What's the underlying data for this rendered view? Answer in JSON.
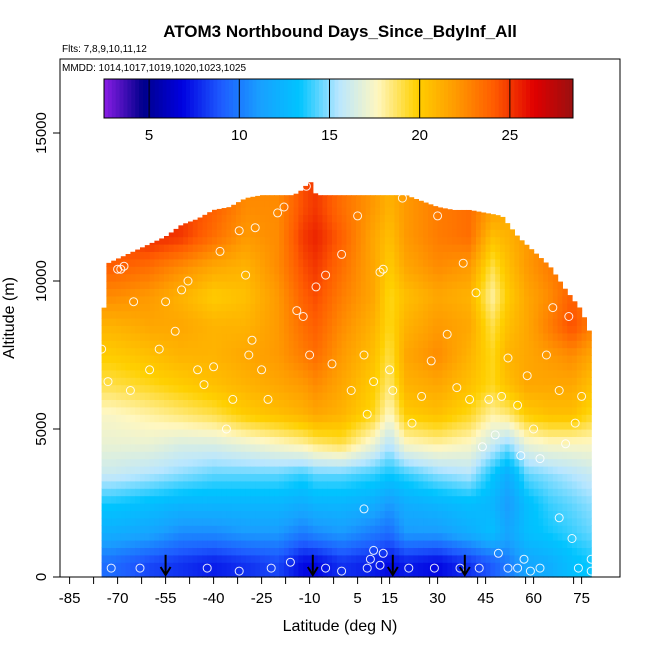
{
  "chart_data": {
    "type": "heatmap",
    "title": "ATOM3 Northbound Days_Since_BdyInf_All",
    "flights_text": "Flts: 7,8,9,10,11,12",
    "mmdd_text": "MMDD: 1014,1017,1019,1020,1023,1025",
    "xlabel": "Latitude (deg N)",
    "ylabel": "Altitude (m)",
    "xlim": [
      -88,
      87
    ],
    "ylim": [
      0,
      17500
    ],
    "x_ticks": [
      -85,
      -70,
      -55,
      -40,
      -25,
      -10,
      5,
      15,
      30,
      45,
      60,
      75
    ],
    "x_tick_labels": [
      "-85",
      "-70",
      "-55",
      "-40",
      "-25",
      "-10",
      "5",
      "15",
      "30",
      "45",
      "60",
      "75"
    ],
    "y_ticks": [
      0,
      5000,
      10000,
      15000
    ],
    "y_tick_labels": [
      "0",
      "5000",
      "10000",
      "15000"
    ],
    "colorbar": {
      "min": 2.5,
      "max": 28.5,
      "ticks": [
        5,
        10,
        15,
        20,
        25
      ],
      "tick_labels": [
        "5",
        "10",
        "15",
        "20",
        "25"
      ],
      "colors": [
        "#8a1de6",
        "#00008b",
        "#0000e0",
        "#1e5cff",
        "#19a0ff",
        "#00c4ff",
        "#b8e6ff",
        "#fff7c0",
        "#ffd000",
        "#ff9a00",
        "#ff5a00",
        "#e00000",
        "#9a1010"
      ]
    },
    "profile_extent": {
      "latitudes": [
        -75,
        -73,
        -65,
        -55,
        -50,
        -45,
        -40,
        -35,
        -30,
        -25,
        -20,
        -15,
        -12,
        -10,
        -8,
        -5,
        0,
        5,
        10,
        15,
        20,
        30,
        35,
        40,
        45,
        50,
        55,
        60,
        65,
        70,
        75,
        78
      ],
      "top_altitudes": [
        8200,
        10600,
        11000,
        11500,
        11900,
        12100,
        12400,
        12500,
        12800,
        12900,
        12900,
        12900,
        13100,
        13400,
        12900,
        12900,
        12900,
        12900,
        12900,
        12900,
        12900,
        12500,
        12400,
        12400,
        12300,
        12200,
        11500,
        11000,
        10500,
        9700,
        9000,
        8100
      ]
    },
    "field": {
      "latitudes": [
        -72,
        -60,
        -50,
        -40,
        -30,
        -20,
        -12,
        -8,
        0,
        10,
        15,
        20,
        30,
        40,
        47,
        52,
        58,
        65,
        72,
        78
      ],
      "altitudes": [
        500,
        1500,
        2500,
        3500,
        4500,
        5500,
        6500,
        7500,
        8500,
        9500,
        10500,
        11500,
        12500
      ],
      "values": [
        [
          9.5,
          8.5,
          8.0,
          7.5,
          8.0,
          8.5,
          7.0,
          7.0,
          8.0,
          7.5,
          7.0,
          7.5,
          7.0,
          8.0,
          9.0,
          10.0,
          11.5,
          12.0,
          13.0,
          13.5
        ],
        [
          12.0,
          11.5,
          10.5,
          10.5,
          11.0,
          11.0,
          10.0,
          10.5,
          11.0,
          10.0,
          9.5,
          11.0,
          11.0,
          12.0,
          13.0,
          11.5,
          13.0,
          13.5,
          14.0,
          14.5
        ],
        [
          13.5,
          13.0,
          12.5,
          12.5,
          12.5,
          12.5,
          12.0,
          12.5,
          12.5,
          12.0,
          11.0,
          12.0,
          12.5,
          13.0,
          12.5,
          11.0,
          13.0,
          14.0,
          14.5,
          15.0
        ],
        [
          16.0,
          15.5,
          15.0,
          14.5,
          14.5,
          14.5,
          14.0,
          14.5,
          14.5,
          14.0,
          13.5,
          14.0,
          15.0,
          15.5,
          13.5,
          12.0,
          14.5,
          15.0,
          15.5,
          16.0
        ],
        [
          17.0,
          17.0,
          16.5,
          16.5,
          17.0,
          17.5,
          18.0,
          18.5,
          19.0,
          17.0,
          15.5,
          17.5,
          18.0,
          17.5,
          16.0,
          15.0,
          17.0,
          17.5,
          17.5,
          17.5
        ],
        [
          17.5,
          18.0,
          18.5,
          19.0,
          20.0,
          20.5,
          21.0,
          21.5,
          21.0,
          19.5,
          17.5,
          20.0,
          20.5,
          19.5,
          18.0,
          18.5,
          20.0,
          20.5,
          20.5,
          19.5
        ],
        [
          19.0,
          19.5,
          20.0,
          20.5,
          21.0,
          21.5,
          22.0,
          22.5,
          21.5,
          20.0,
          18.5,
          21.0,
          21.5,
          20.5,
          19.5,
          20.5,
          21.5,
          21.5,
          21.5,
          20.5
        ],
        [
          20.0,
          20.5,
          21.0,
          21.0,
          21.5,
          22.0,
          23.0,
          23.5,
          22.0,
          20.5,
          19.0,
          21.5,
          22.5,
          21.0,
          19.5,
          21.0,
          21.5,
          22.0,
          22.5,
          21.5
        ],
        [
          21.0,
          21.5,
          21.5,
          21.0,
          21.0,
          22.0,
          23.5,
          24.0,
          22.5,
          21.0,
          19.5,
          21.0,
          22.0,
          21.5,
          19.0,
          20.5,
          21.5,
          23.0,
          24.5,
          23.0
        ],
        [
          22.5,
          22.0,
          21.0,
          20.0,
          20.5,
          22.0,
          24.0,
          24.5,
          23.0,
          21.5,
          19.5,
          20.5,
          21.5,
          21.0,
          18.0,
          20.0,
          21.5,
          22.5,
          24.0,
          22.5
        ],
        [
          24.0,
          23.5,
          22.5,
          21.5,
          21.0,
          22.5,
          24.5,
          25.0,
          23.5,
          21.5,
          20.0,
          21.5,
          22.5,
          22.0,
          19.0,
          20.5,
          22.0,
          23.0,
          23.5,
          22.5
        ],
        [
          25.0,
          25.5,
          25.0,
          23.5,
          22.0,
          22.5,
          25.0,
          25.5,
          24.0,
          21.5,
          20.5,
          22.0,
          23.0,
          23.5,
          20.5,
          21.0,
          22.0,
          23.0,
          23.0,
          22.0
        ],
        [
          25.0,
          25.5,
          25.0,
          24.0,
          22.5,
          22.5,
          24.5,
          25.0,
          23.5,
          22.0,
          21.0,
          22.0,
          23.0,
          23.5,
          22.0,
          21.5,
          22.0,
          23.0,
          23.0,
          22.0
        ]
      ]
    },
    "points": [
      [
        -73,
        6600
      ],
      [
        -70,
        10400
      ],
      [
        -69,
        10400
      ],
      [
        -68,
        10500
      ],
      [
        -66,
        6300
      ],
      [
        -65,
        9300
      ],
      [
        -60,
        7000
      ],
      [
        -58,
        11800
      ],
      [
        -57,
        7700
      ],
      [
        -55,
        9300
      ],
      [
        -52,
        8300
      ],
      [
        -50,
        9700
      ],
      [
        -48,
        10000
      ],
      [
        -45,
        7000
      ],
      [
        -43,
        6500
      ],
      [
        -40,
        7100
      ],
      [
        -38,
        11000
      ],
      [
        -36,
        5000
      ],
      [
        -34,
        6000
      ],
      [
        -32,
        11700
      ],
      [
        -30,
        10200
      ],
      [
        -29,
        7500
      ],
      [
        -28,
        8000
      ],
      [
        -27,
        11800
      ],
      [
        -25,
        7000
      ],
      [
        -23,
        6000
      ],
      [
        -20,
        12300
      ],
      [
        -18,
        12500
      ],
      [
        -14,
        9000
      ],
      [
        -12,
        8800
      ],
      [
        -11,
        13200
      ],
      [
        -10,
        7500
      ],
      [
        -8,
        9800
      ],
      [
        -5,
        10200
      ],
      [
        -3,
        7200
      ],
      [
        0,
        10900
      ],
      [
        3,
        6300
      ],
      [
        5,
        12200
      ],
      [
        7,
        7500
      ],
      [
        8,
        5500
      ],
      [
        10,
        6600
      ],
      [
        12,
        10300
      ],
      [
        13,
        10400
      ],
      [
        15,
        7000
      ],
      [
        16,
        6300
      ],
      [
        19,
        12800
      ],
      [
        22,
        5200
      ],
      [
        25,
        6100
      ],
      [
        28,
        7300
      ],
      [
        30,
        12200
      ],
      [
        33,
        8200
      ],
      [
        36,
        6400
      ],
      [
        38,
        10600
      ],
      [
        40,
        6000
      ],
      [
        42,
        9600
      ],
      [
        44,
        4400
      ],
      [
        46,
        6000
      ],
      [
        48,
        4800
      ],
      [
        50,
        6100
      ],
      [
        52,
        7400
      ],
      [
        55,
        5800
      ],
      [
        56,
        4100
      ],
      [
        58,
        6800
      ],
      [
        60,
        5000
      ],
      [
        62,
        4000
      ],
      [
        64,
        7500
      ],
      [
        66,
        9100
      ],
      [
        68,
        6300
      ],
      [
        70,
        4500
      ],
      [
        71,
        8800
      ],
      [
        73,
        5200
      ],
      [
        75,
        6100
      ],
      [
        77,
        9000
      ],
      [
        -78,
        7800
      ],
      [
        -75,
        7700
      ],
      [
        -72,
        300
      ],
      [
        -63,
        300
      ],
      [
        -42,
        300
      ],
      [
        -32,
        200
      ],
      [
        -22,
        300
      ],
      [
        -16,
        500
      ],
      [
        -5,
        300
      ],
      [
        0,
        200
      ],
      [
        7,
        2300
      ],
      [
        8,
        300
      ],
      [
        9,
        600
      ],
      [
        10,
        900
      ],
      [
        12,
        400
      ],
      [
        13,
        800
      ],
      [
        21,
        300
      ],
      [
        29,
        300
      ],
      [
        37,
        300
      ],
      [
        43,
        300
      ],
      [
        49,
        800
      ],
      [
        52,
        300
      ],
      [
        55,
        300
      ],
      [
        57,
        600
      ],
      [
        59,
        200
      ],
      [
        62,
        300
      ],
      [
        68,
        2000
      ],
      [
        72,
        1300
      ],
      [
        74,
        300
      ],
      [
        78,
        200
      ],
      [
        78,
        600
      ]
    ],
    "arrows": [
      {
        "lat": -55,
        "alt_top": 750,
        "alt_bottom": 0
      },
      {
        "lat": -9,
        "alt_top": 750,
        "alt_bottom": 0
      },
      {
        "lat": 16,
        "alt_top": 750,
        "alt_bottom": 0
      },
      {
        "lat": 38.5,
        "alt_top": 750,
        "alt_bottom": 0
      }
    ]
  }
}
